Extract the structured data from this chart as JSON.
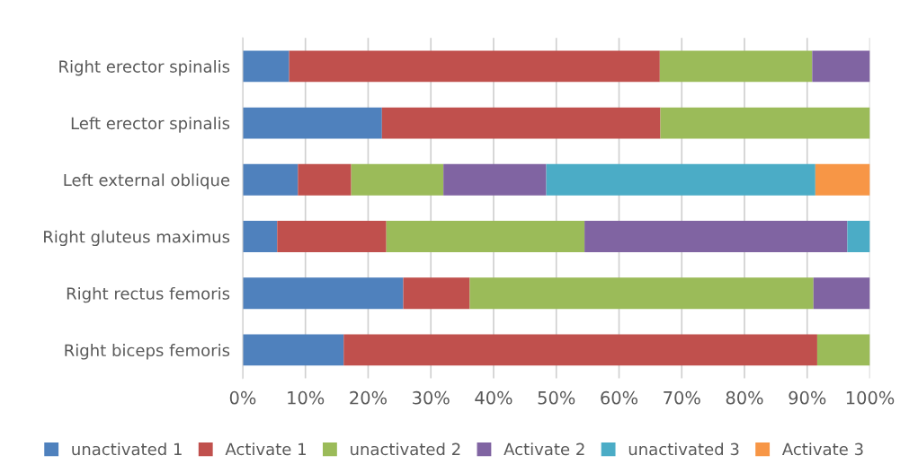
{
  "chart_data": {
    "type": "bar",
    "orientation": "horizontal",
    "stacked": true,
    "categories": [
      "Right erector spinalis",
      "Left erector spinalis",
      "Left external oblique",
      "Right gluteus maximus",
      "Right rectus femoris",
      "Right biceps femoris"
    ],
    "series": [
      {
        "name": "unactivated 1",
        "color": "#4f81bd",
        "values": [
          7.4,
          22.2,
          8.8,
          5.5,
          25.6,
          16.1
        ]
      },
      {
        "name": "Activate 1",
        "color": "#c0504d",
        "values": [
          59.1,
          44.4,
          8.5,
          17.4,
          10.6,
          75.5
        ]
      },
      {
        "name": "unactivated 2",
        "color": "#9bbb59",
        "values": [
          24.3,
          33.4,
          14.7,
          31.6,
          54.8,
          8.4
        ]
      },
      {
        "name": "Activate 2",
        "color": "#8064a2",
        "values": [
          9.2,
          null,
          16.4,
          41.9,
          9.0,
          null
        ]
      },
      {
        "name": "unactivated 3",
        "color": "#4bacc6",
        "values": [
          null,
          null,
          42.9,
          3.6,
          null,
          null
        ]
      },
      {
        "name": "Activate 3",
        "color": "#f79646",
        "values": [
          null,
          null,
          8.7,
          null,
          null,
          null
        ]
      }
    ],
    "xlim": [
      0,
      100
    ],
    "xticks": [
      {
        "value": 0,
        "label": "0%"
      },
      {
        "value": 10,
        "label": "10%"
      },
      {
        "value": 20,
        "label": "20%"
      },
      {
        "value": 30,
        "label": "30%"
      },
      {
        "value": 40,
        "label": "40%"
      },
      {
        "value": 50,
        "label": "50%"
      },
      {
        "value": 60,
        "label": "60%"
      },
      {
        "value": 70,
        "label": "70%"
      },
      {
        "value": 80,
        "label": "80%"
      },
      {
        "value": 90,
        "label": "90%"
      },
      {
        "value": 100,
        "label": "100%"
      }
    ],
    "grid": "x",
    "legend": "bottom"
  }
}
